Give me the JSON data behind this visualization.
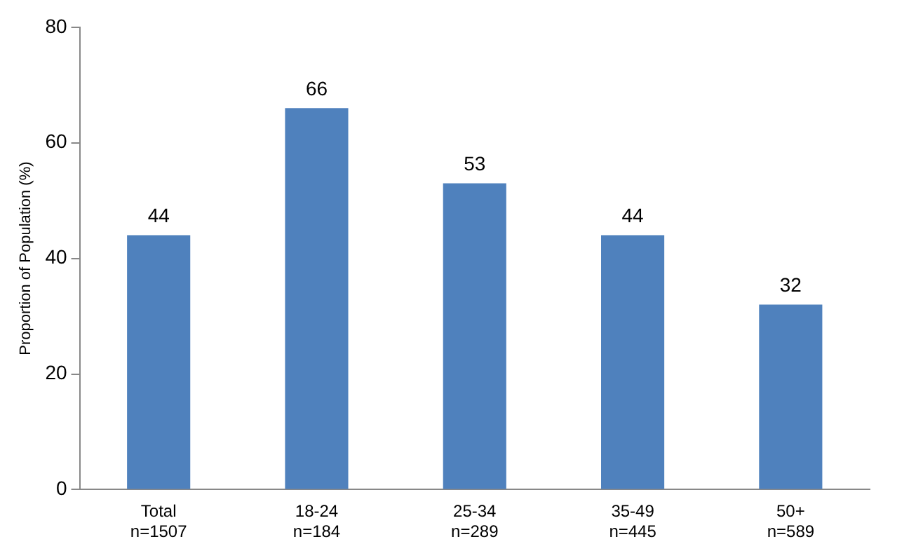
{
  "chart_data": {
    "type": "bar",
    "ylabel": "Proportion of Population (%)",
    "categories": [
      "Total\nn=1507",
      "18-24\nn=184",
      "25-34\nn=289",
      "35-49\nn=445",
      "50+\nn=589"
    ],
    "values": [
      44,
      66,
      53,
      44,
      32
    ],
    "color": "#4f81bd",
    "ylim": [
      0,
      80
    ],
    "yticks": [
      0,
      20,
      40,
      60,
      80
    ],
    "grid": false,
    "legend": false,
    "data_labels": true
  }
}
